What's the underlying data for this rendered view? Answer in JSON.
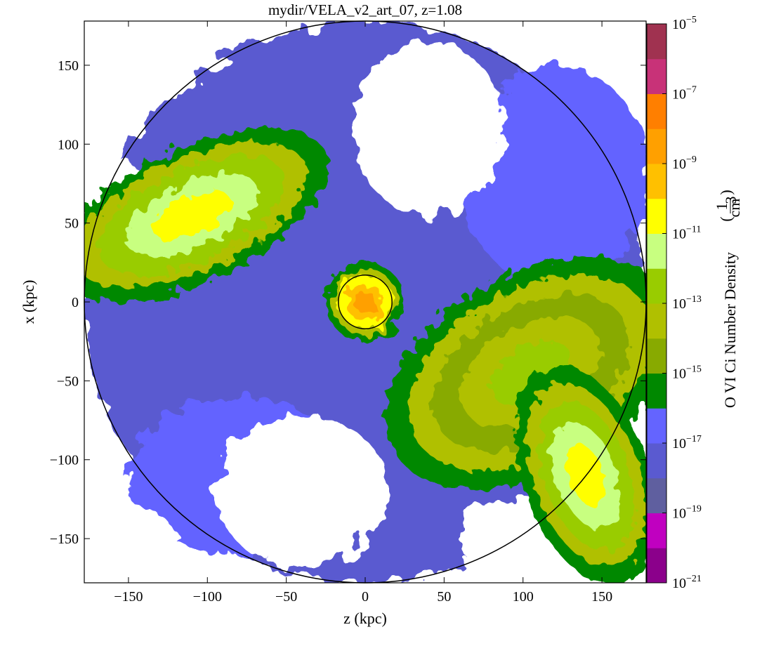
{
  "chart_data": {
    "type": "heatmap",
    "title": "mydir/VELA_v2_art_07, z=1.08",
    "xlabel": "z  (kpc)",
    "ylabel": "x  (kpc)",
    "xlim": [
      -178,
      178
    ],
    "ylim": [
      -178,
      178
    ],
    "xticks": [
      -150,
      -100,
      -50,
      0,
      50,
      100,
      150
    ],
    "yticks": [
      -150,
      -100,
      -50,
      0,
      50,
      100,
      150
    ],
    "circles_kpc": [
      178,
      17
    ],
    "colorbar": {
      "label": "O VI Ci Number Density",
      "unit_numerator": "1",
      "unit_denominator": "cm",
      "unit_exponent": "3",
      "scale": "log",
      "range_exponents": [
        -21,
        -5
      ],
      "tick_exponents": [
        -5,
        -7,
        -9,
        -11,
        -13,
        -15,
        -17,
        -19,
        -21
      ],
      "tick_base": "10",
      "colors_low_to_high": [
        "#8b008b",
        "#c000c0",
        "#5f5f9f",
        "#5a5ad0",
        "#6464ff",
        "#008800",
        "#88aa00",
        "#b0c000",
        "#99cc00",
        "#c8ff80",
        "#ffff00",
        "#ffc000",
        "#ffa000",
        "#ff7f00",
        "#c83278",
        "#a03250"
      ]
    },
    "fields": {
      "background": "#ffffff",
      "regions": [
        {
          "name": "disk-plume-upper-left",
          "x": -110,
          "y": 55,
          "rx": 75,
          "ry": 34,
          "angle": -25,
          "level": 10
        },
        {
          "name": "disk-plume-lower-right",
          "x": 105,
          "y": -45,
          "rx": 80,
          "ry": 50,
          "angle": -30,
          "level": 8
        },
        {
          "name": "outer-stream-lower-right",
          "x": 140,
          "y": -110,
          "rx": 32,
          "ry": 58,
          "angle": -20,
          "level": 10
        },
        {
          "name": "core",
          "x": 0,
          "y": 0,
          "rx": 20,
          "ry": 20,
          "angle": 0,
          "level": 12
        }
      ]
    }
  }
}
